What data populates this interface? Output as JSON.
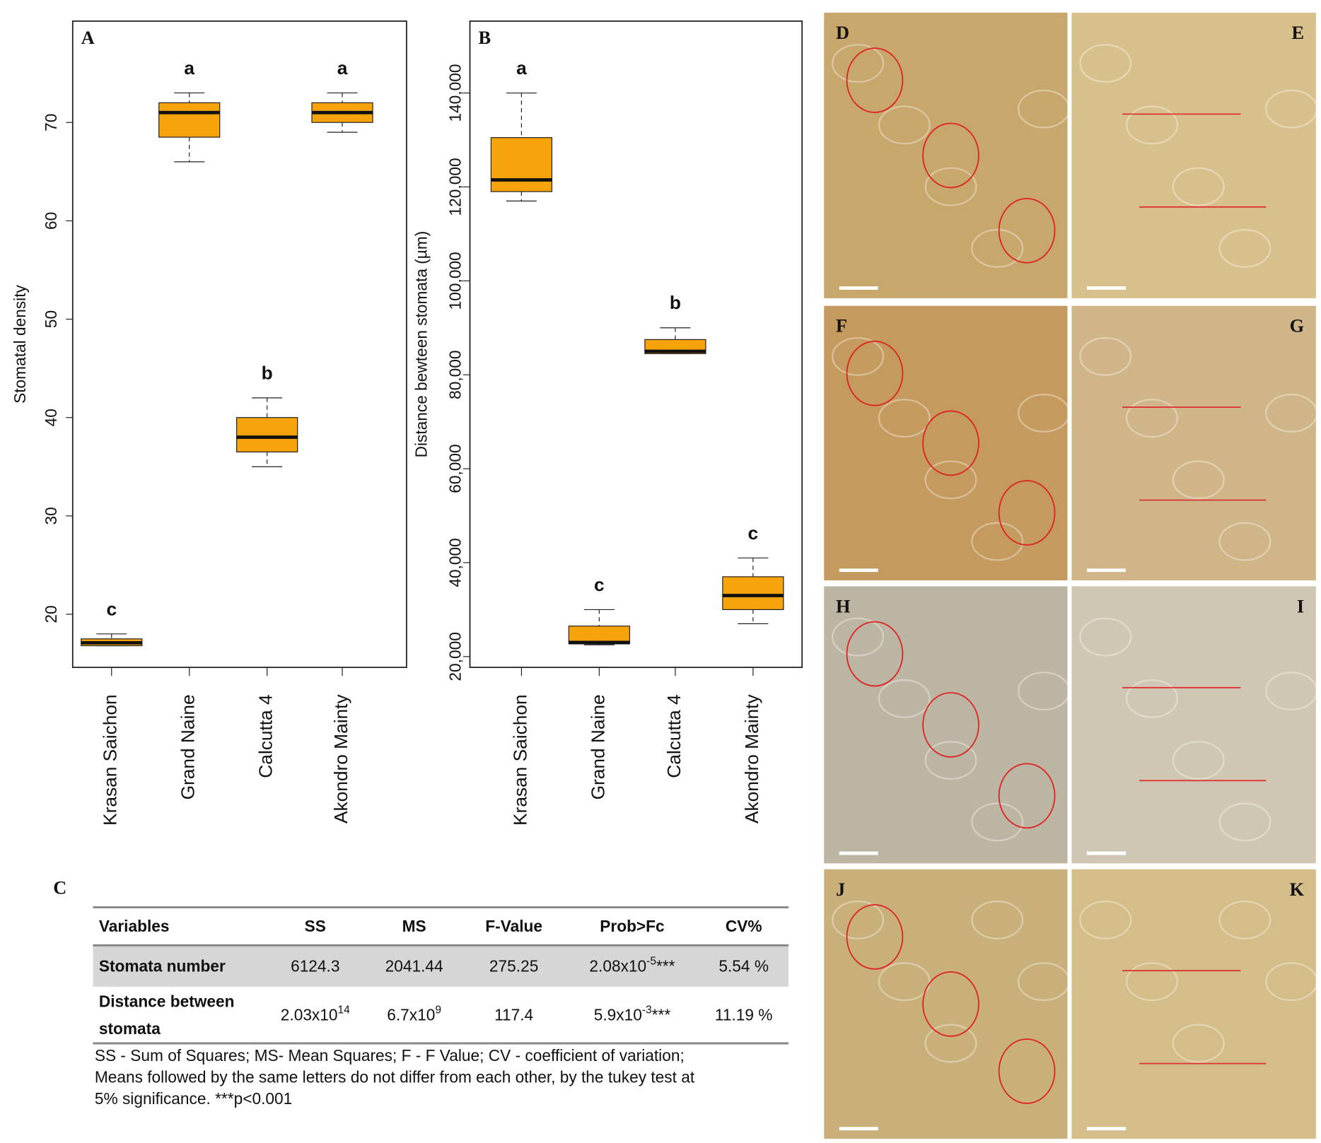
{
  "chart_data": [
    {
      "type": "box",
      "title": "A",
      "ylabel": "Stomatal density",
      "categories": [
        "Krasan Saichon",
        "Grand Naine",
        "Calcutta 4",
        "Akondro Mainty"
      ],
      "ylim": [
        14.6,
        80.3
      ],
      "yticks": [
        20,
        30,
        40,
        50,
        60,
        70
      ],
      "series": [
        {
          "color": "#f7a30c",
          "boxes": [
            {
              "min": 16.8,
              "q1": 16.8,
              "median": 17.1,
              "q3": 17.5,
              "max": 18
            },
            {
              "min": 66,
              "q1": 68.5,
              "median": 71,
              "q3": 72,
              "max": 73
            },
            {
              "min": 35,
              "q1": 36.5,
              "median": 38,
              "q3": 40,
              "max": 42
            },
            {
              "min": 69,
              "q1": 70,
              "median": 71,
              "q3": 72,
              "max": 73
            }
          ]
        }
      ],
      "annotations": [
        "c",
        "a",
        "b",
        "a"
      ]
    },
    {
      "type": "box",
      "title": "B",
      "ylabel": "Distance bewteen  stomata  (µm)",
      "categories": [
        "Krasan Saichon",
        "Grand Naine",
        "Calcutta 4",
        "Akondro Mainty"
      ],
      "ylim": [
        17700,
        155300
      ],
      "yticks": [
        {
          "value": 20000,
          "label": "20,000"
        },
        {
          "value": 40000,
          "label": "40,000"
        },
        {
          "value": 60000,
          "label": "60,000"
        },
        {
          "value": 80000,
          "label": "80,000"
        },
        {
          "value": 100000,
          "label": "100,000"
        },
        {
          "value": 120000,
          "label": "120,000"
        },
        {
          "value": 140000,
          "label": "140,000"
        }
      ],
      "series": [
        {
          "color": "#f7a30c",
          "boxes": [
            {
              "min": 117000,
              "q1": 119000,
              "median": 121500,
              "q3": 130500,
              "max": 140000
            },
            {
              "min": 22500,
              "q1": 22700,
              "median": 23000,
              "q3": 26500,
              "max": 30000
            },
            {
              "min": 84500,
              "q1": 84500,
              "median": 85000,
              "q3": 87500,
              "max": 90000
            },
            {
              "min": 27000,
              "q1": 30000,
              "median": 33000,
              "q3": 37000,
              "max": 41000
            }
          ]
        }
      ],
      "annotations": [
        "a",
        "c",
        "b",
        "c"
      ]
    }
  ],
  "table": {
    "label": "C",
    "header": [
      "Variables",
      "SS",
      "MS",
      "F-Value",
      "Prob>Fc",
      "CV%"
    ],
    "rows": [
      [
        [
          "Stomata number"
        ],
        {
          "base": "6124.3"
        },
        {
          "base": "2041.44"
        },
        {
          "base": "275.25"
        },
        {
          "base": "2.08x10",
          "sup": "-5",
          "tail": "***"
        },
        {
          "base": "5.54 %"
        }
      ],
      [
        [
          "Distance between",
          "stomata"
        ],
        {
          "base": "2.03x10",
          "sup": "14"
        },
        {
          "base": "6.7x10",
          "sup": "9"
        },
        {
          "base": "117.4"
        },
        {
          "base": "5.9x10",
          "sup": "-3",
          "tail": "***"
        },
        {
          "base": "11.19 %"
        }
      ]
    ],
    "note": [
      "SS - Sum of Squares; MS- Mean Squares; F - F Value; CV - coefficient of variation;",
      "Means followed by the same letters do not differ from each other, by the tukey test at",
      "5% significance. ***p<0.001"
    ]
  },
  "panels": [
    "D",
    "E",
    "F",
    "G",
    "H",
    "I",
    "J",
    "K"
  ]
}
